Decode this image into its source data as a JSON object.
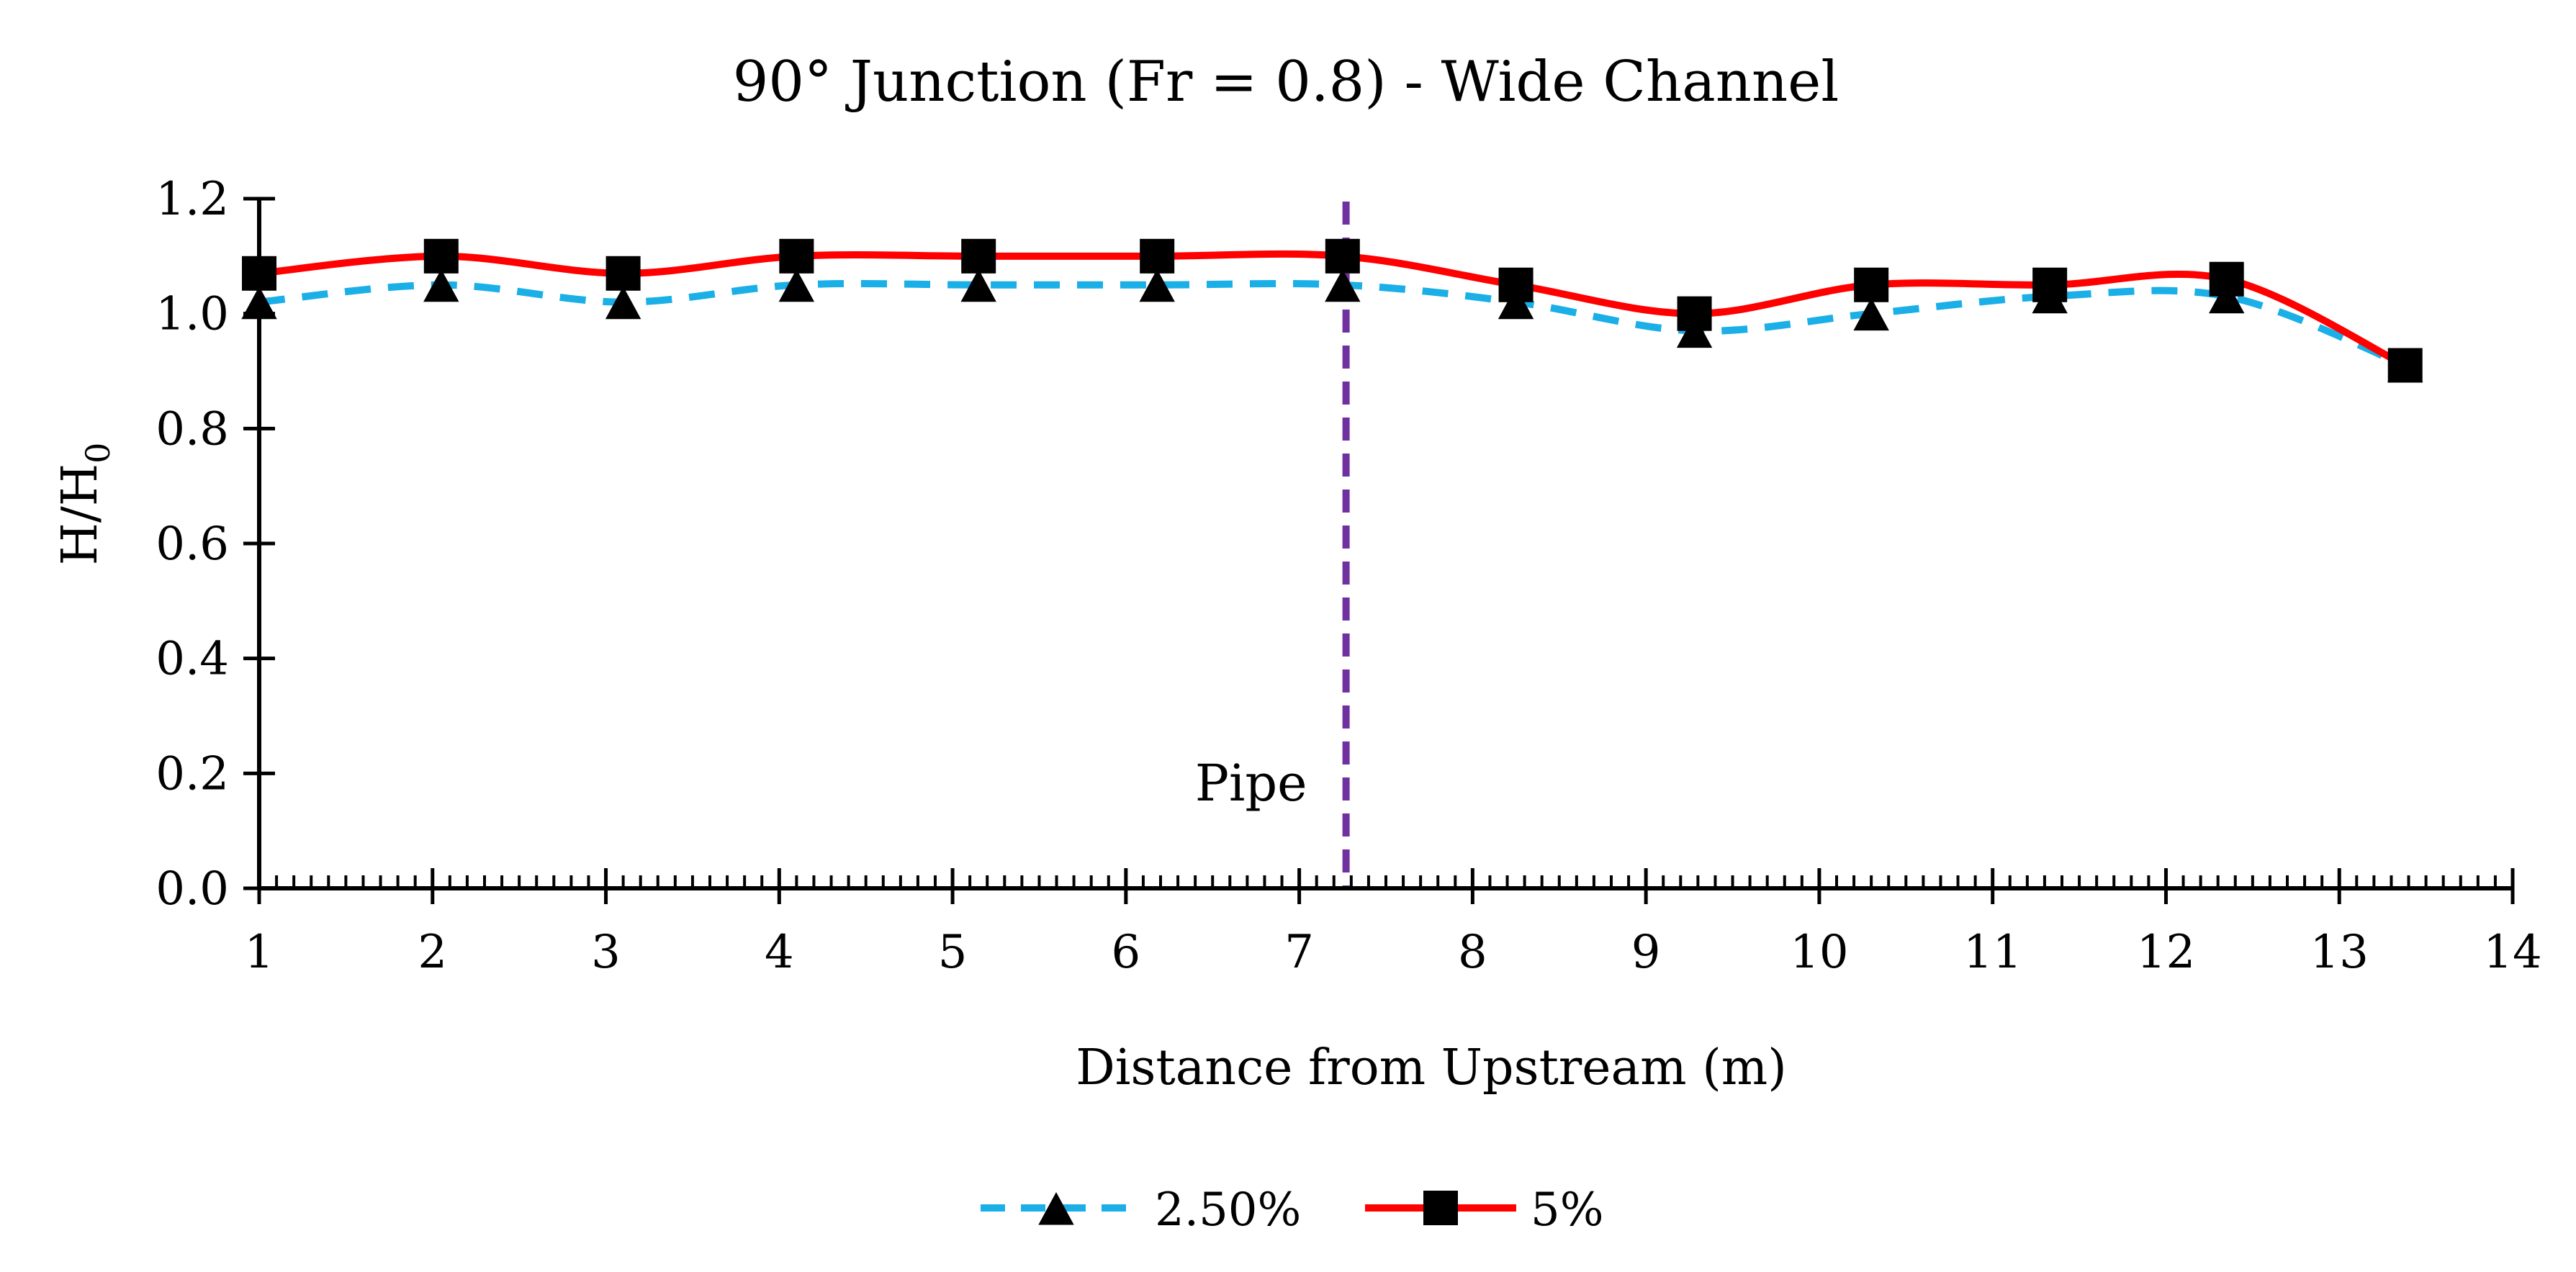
{
  "chart_data": {
    "type": "line",
    "title": "90° Junction (Fr = 0.8) - Wide Channel",
    "xlabel": "Distance from Upstream (m)",
    "ylabel": "H/H",
    "ylabel_subscript": "0",
    "xlim": [
      1,
      14
    ],
    "ylim": [
      0,
      1.2
    ],
    "x_ticks": [
      1,
      2,
      3,
      4,
      5,
      6,
      7,
      8,
      9,
      10,
      11,
      12,
      13,
      14
    ],
    "x_tick_labels": [
      "1",
      "2",
      "3",
      "4",
      "5",
      "6",
      "7",
      "8",
      "9",
      "10",
      "11",
      "12",
      "13",
      "14"
    ],
    "y_ticks": [
      0,
      0.2,
      0.4,
      0.6,
      0.8,
      1.0,
      1.2
    ],
    "y_tick_labels": [
      "0.0",
      "0.2",
      "0.4",
      "0.6",
      "0.8",
      "1.0",
      "1.2"
    ],
    "x_minor_per_major": 10,
    "legend_position": "bottom-center",
    "series": [
      {
        "name": "2.50%",
        "color": "#1AAFE6",
        "line_style": "dashed",
        "marker": "triangle",
        "x": [
          1.0,
          2.05,
          3.1,
          4.1,
          5.15,
          6.18,
          7.25,
          8.25,
          9.28,
          10.3,
          11.33,
          12.35,
          13.38
        ],
        "values": [
          1.02,
          1.05,
          1.02,
          1.05,
          1.05,
          1.05,
          1.05,
          1.02,
          0.97,
          1.0,
          1.03,
          1.03,
          0.91
        ]
      },
      {
        "name": "5%",
        "color": "#FF0000",
        "line_style": "solid",
        "marker": "square",
        "x": [
          1.0,
          2.05,
          3.1,
          4.1,
          5.15,
          6.18,
          7.25,
          8.25,
          9.28,
          10.3,
          11.33,
          12.35,
          13.38
        ],
        "values": [
          1.07,
          1.1,
          1.07,
          1.1,
          1.1,
          1.1,
          1.1,
          1.05,
          1.0,
          1.05,
          1.05,
          1.06,
          0.91
        ]
      }
    ],
    "annotations": [
      {
        "type": "vline",
        "x": 7.27,
        "color": "#7030A0",
        "line_style": "dashed",
        "label": "Pipe"
      }
    ]
  }
}
